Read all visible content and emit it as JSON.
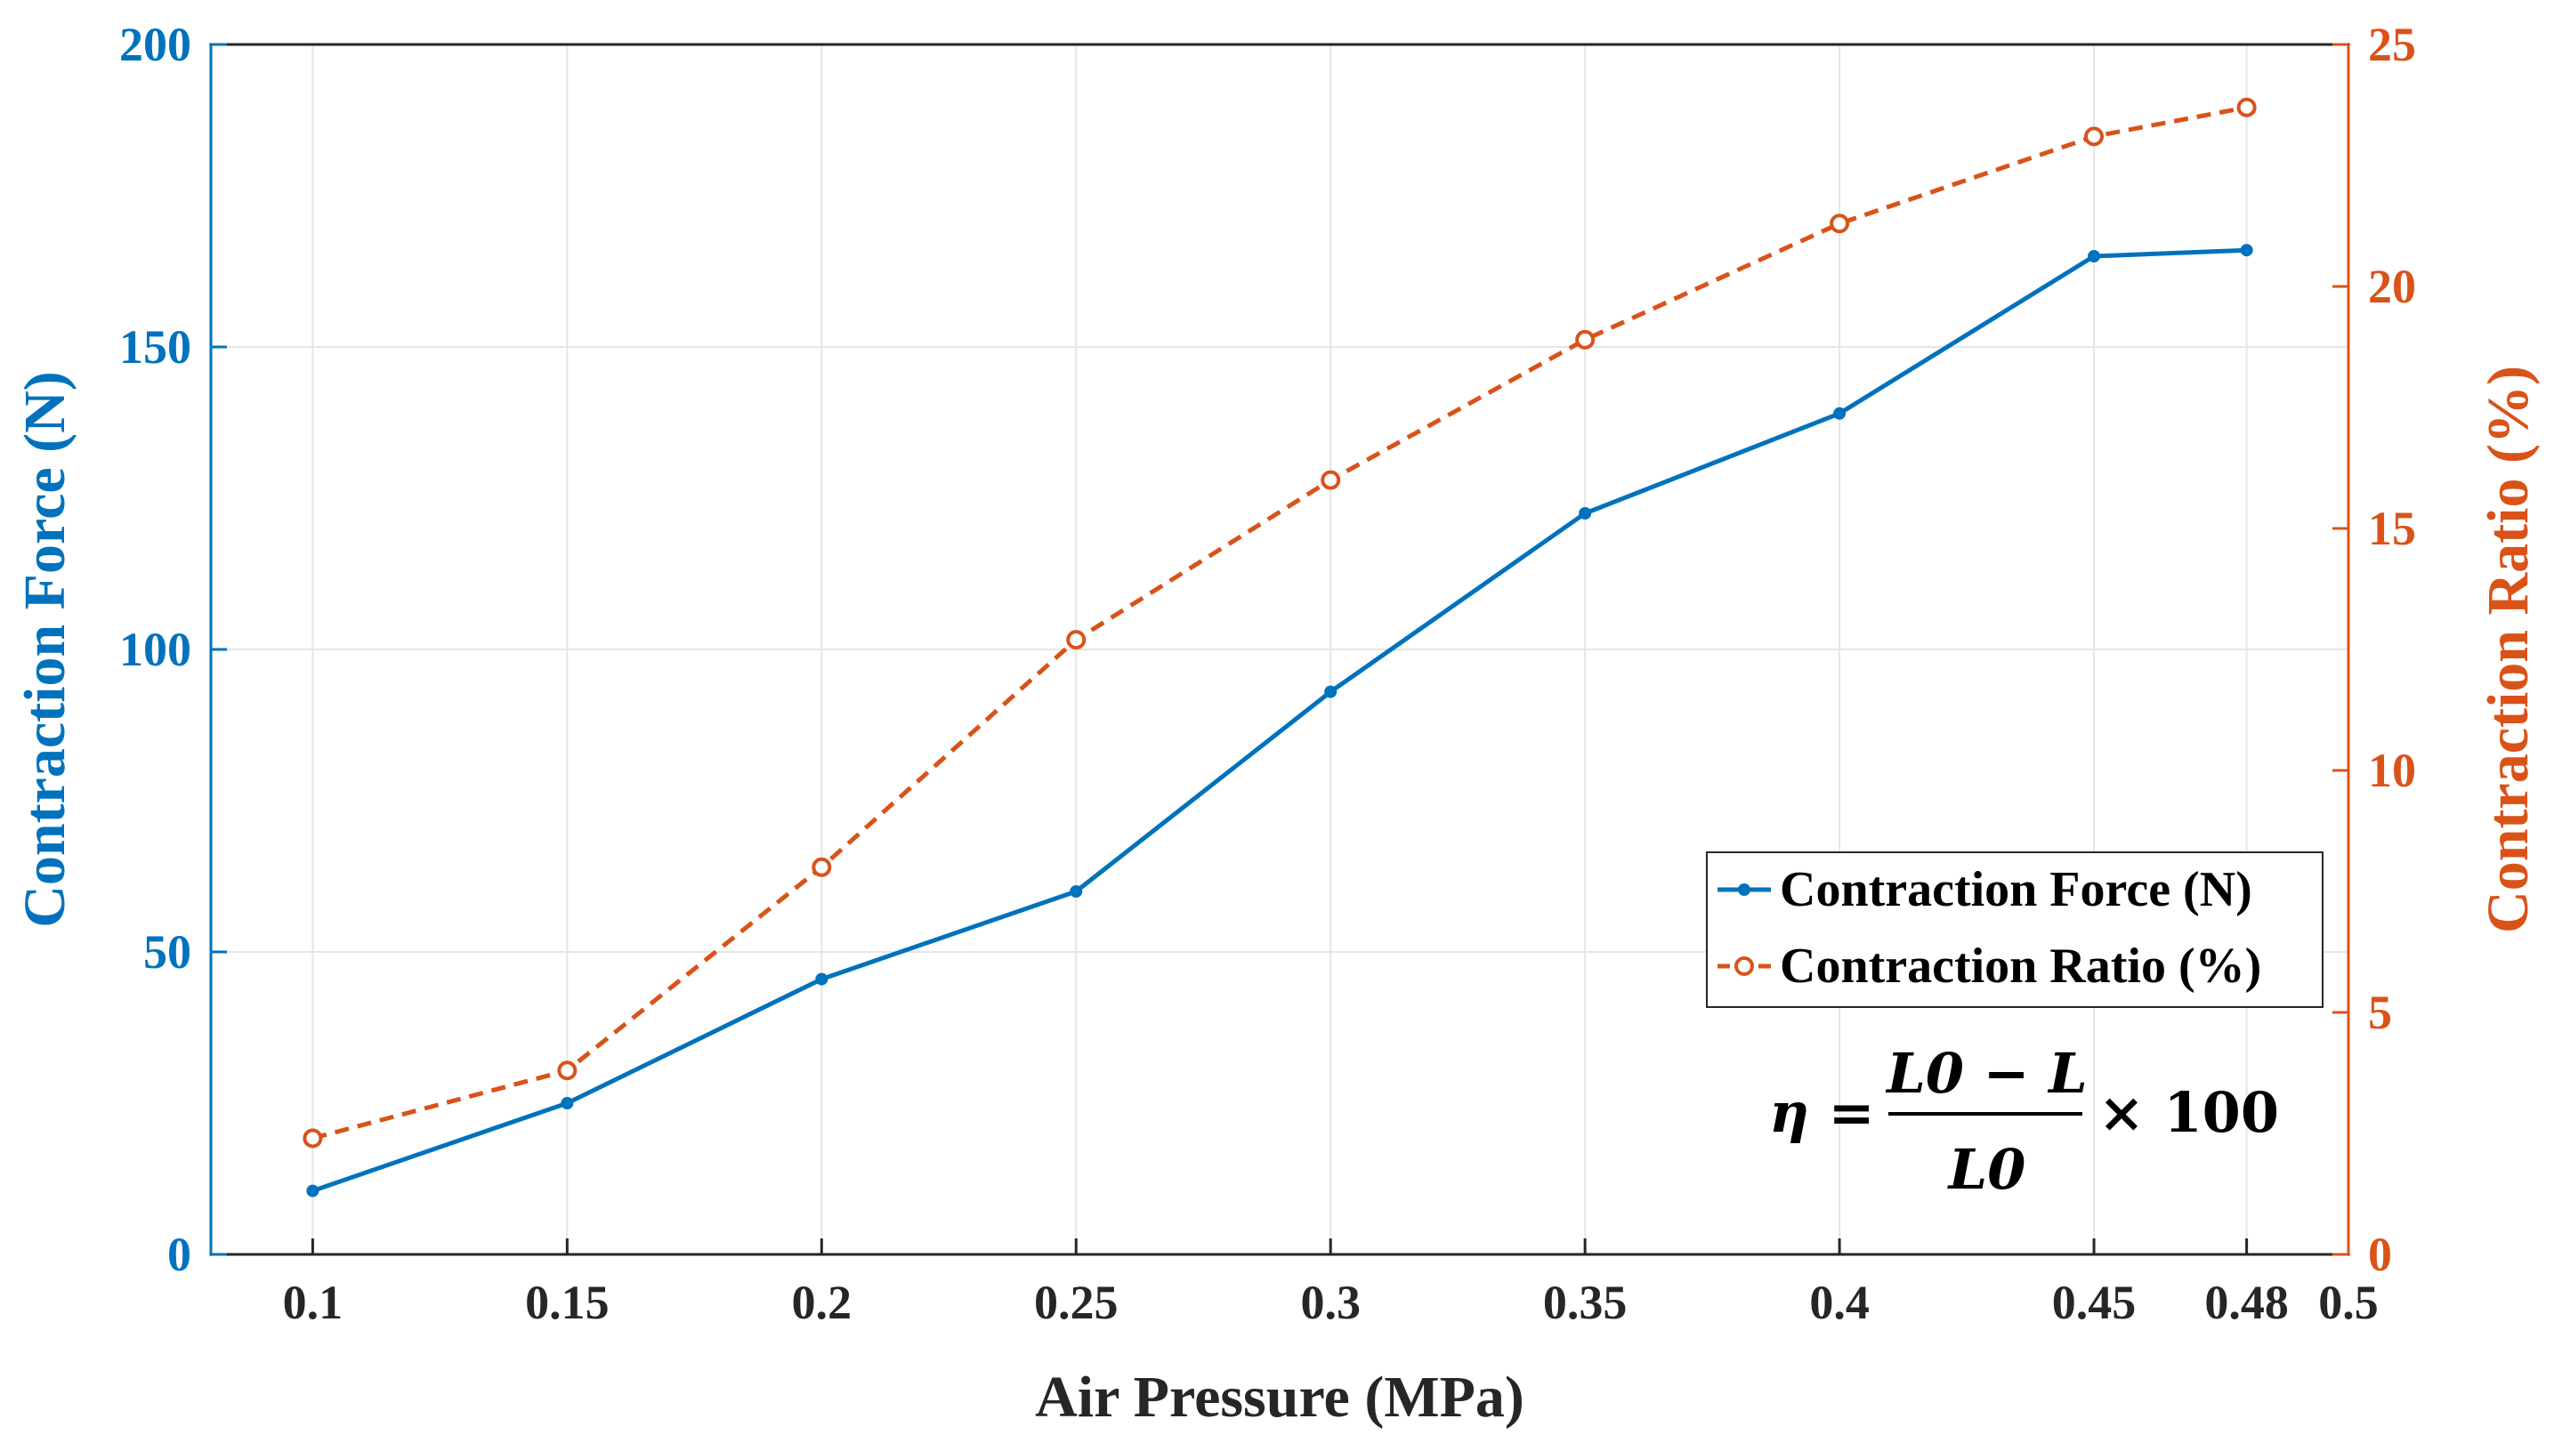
{
  "colors": {
    "force": "#0072BD",
    "ratio": "#D95319",
    "grid": "#e6e6e6",
    "axis": "#262626"
  },
  "chart_data": {
    "type": "line",
    "xlabel": "Air Pressure (MPa)",
    "ylabel_left": "Contraction Force (N)",
    "ylabel_right": "Contraction Ratio (%)",
    "x": [
      0.1,
      0.15,
      0.2,
      0.25,
      0.3,
      0.35,
      0.4,
      0.45,
      0.48
    ],
    "xlim": [
      0.08,
      0.5
    ],
    "x_ticks": [
      0.1,
      0.15,
      0.2,
      0.25,
      0.3,
      0.35,
      0.4,
      0.45,
      0.48,
      0.5
    ],
    "x_tick_labels": [
      "0.1",
      "0.15",
      "0.2",
      "0.25",
      "0.3",
      "0.35",
      "0.4",
      "0.45",
      "0.48",
      "0.5"
    ],
    "ylim_left": [
      0,
      200
    ],
    "y_ticks_left": [
      "0",
      "50",
      "100",
      "150",
      "200"
    ],
    "ylim_right": [
      0,
      25
    ],
    "y_ticks_right": [
      "0",
      "5",
      "10",
      "15",
      "20",
      "25"
    ],
    "grid": true,
    "legend_position": "lower-right",
    "series": [
      {
        "name": "Contraction Force (N)",
        "axis": "left",
        "style": "solid",
        "marker": "dot",
        "values": [
          10.5,
          25,
          45.5,
          60,
          93,
          122.5,
          139,
          165,
          166
        ]
      },
      {
        "name": "Contraction Ratio (%)",
        "axis": "right",
        "style": "dashed",
        "marker": "open-circle",
        "values": [
          2.4,
          3.8,
          8.0,
          12.7,
          16.0,
          18.9,
          21.3,
          23.1,
          23.7
        ]
      }
    ],
    "annotation": {
      "lhs": "η =",
      "numerator": "L0 − L",
      "denominator": "L0",
      "rhs": "× 100"
    }
  }
}
